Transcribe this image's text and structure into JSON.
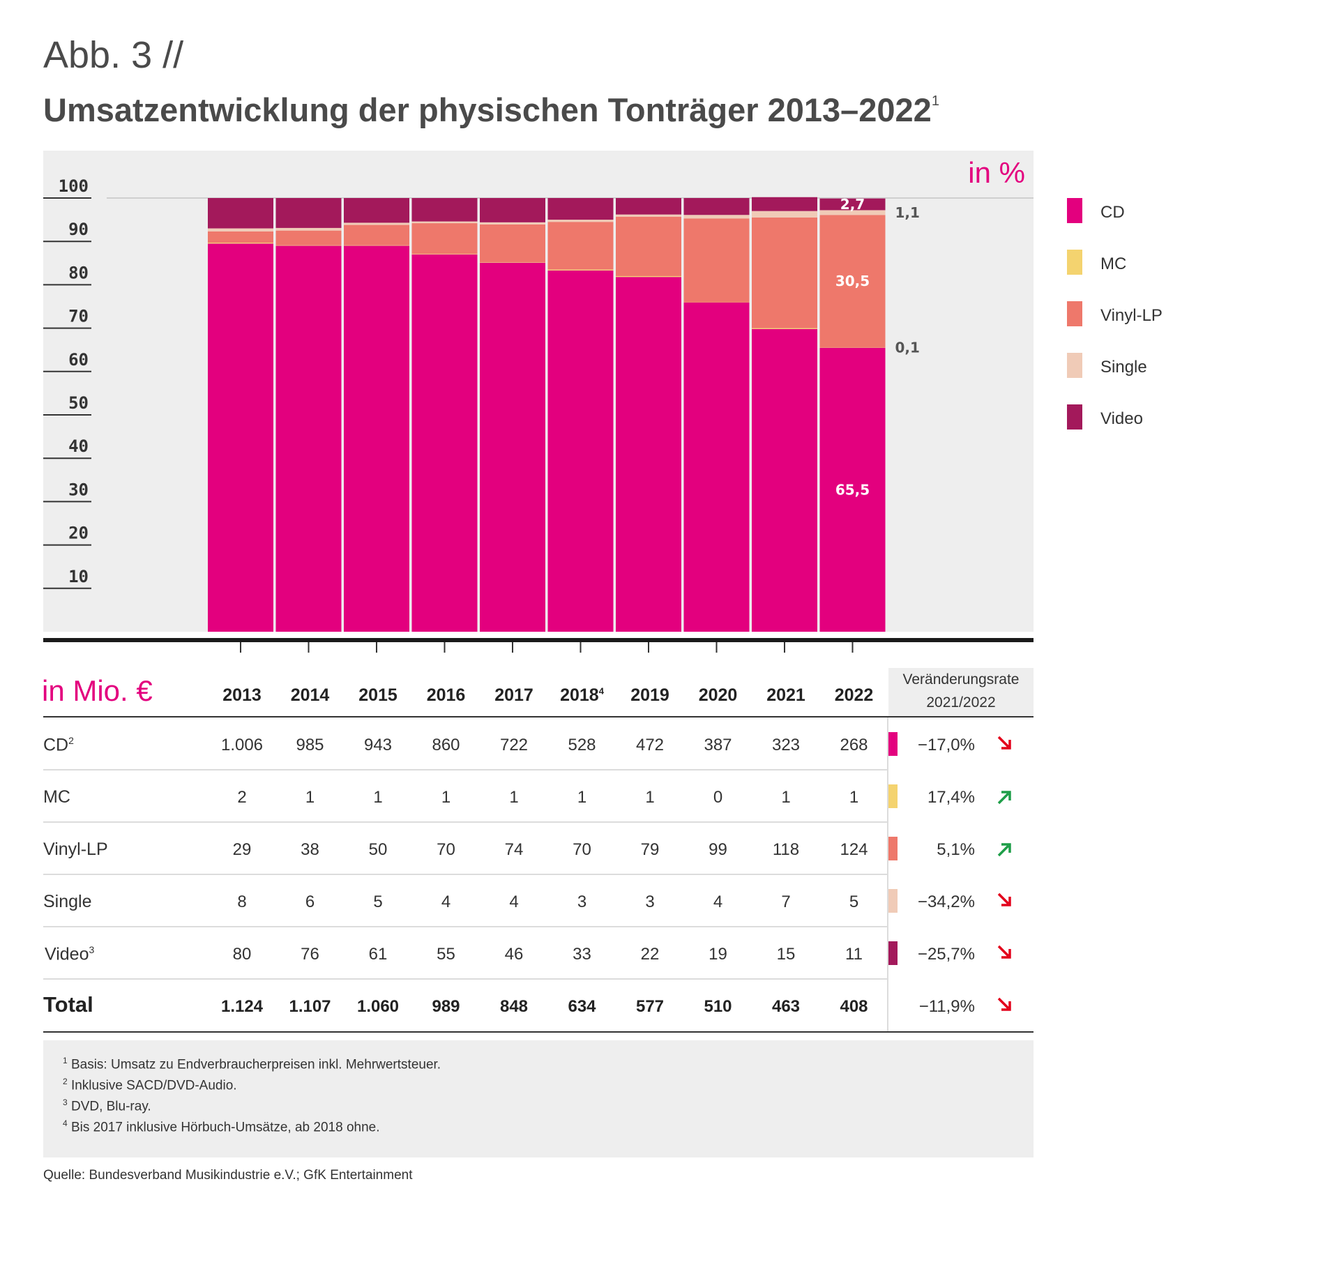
{
  "figure": {
    "label": "Abb. 3 //",
    "title": "Umsatzentwicklung der physischen Tonträger 2013–2022",
    "title_footnote": "1"
  },
  "chart_data": {
    "type": "bar",
    "stacked": true,
    "unit_label": "in %",
    "ylim": [
      0,
      100
    ],
    "yticks": [
      100,
      90,
      80,
      70,
      60,
      50,
      40,
      30,
      20,
      10
    ],
    "grid": false,
    "legend_position": "right",
    "categories": [
      "2013",
      "2014",
      "2015",
      "2016",
      "2017",
      "2018",
      "2019",
      "2020",
      "2021",
      "2022"
    ],
    "series": [
      {
        "name": "CD",
        "color": "#e3007e",
        "values": [
          89.5,
          89.0,
          89.0,
          87.0,
          85.1,
          83.3,
          81.8,
          75.9,
          69.8,
          65.5
        ]
      },
      {
        "name": "MC",
        "color": "#f4d36f",
        "values": [
          0.2,
          0.1,
          0.1,
          0.1,
          0.1,
          0.2,
          0.2,
          0.0,
          0.2,
          0.1
        ]
      },
      {
        "name": "Vinyl-LP",
        "color": "#ee786b",
        "values": [
          2.6,
          3.4,
          4.7,
          7.1,
          8.7,
          11.0,
          13.7,
          19.4,
          25.5,
          30.5
        ]
      },
      {
        "name": "Single",
        "color": "#f0cbb7",
        "values": [
          0.7,
          0.6,
          0.5,
          0.4,
          0.5,
          0.5,
          0.5,
          0.8,
          1.5,
          1.1
        ]
      },
      {
        "name": "Video",
        "color": "#a3195b",
        "values": [
          7.0,
          6.9,
          5.7,
          5.4,
          5.6,
          5.0,
          3.8,
          3.9,
          3.2,
          2.7
        ]
      }
    ],
    "annotations": [
      {
        "text": "2,7",
        "series": "Video",
        "category": "2022",
        "placement": "inside"
      },
      {
        "text": "30,5",
        "series": "Vinyl-LP",
        "category": "2022",
        "placement": "inside"
      },
      {
        "text": "65,5",
        "series": "CD",
        "category": "2022",
        "placement": "inside"
      },
      {
        "text": "1,1",
        "series": "Single",
        "category": "2022",
        "placement": "outside-right"
      },
      {
        "text": "0,1",
        "series": "MC",
        "category": "2022",
        "placement": "outside-right"
      }
    ]
  },
  "table": {
    "unit_label": "in Mio. €",
    "years": [
      {
        "label": "2013",
        "sup": ""
      },
      {
        "label": "2014",
        "sup": ""
      },
      {
        "label": "2015",
        "sup": ""
      },
      {
        "label": "2016",
        "sup": ""
      },
      {
        "label": "2017",
        "sup": ""
      },
      {
        "label": "2018",
        "sup": "4"
      },
      {
        "label": "2019",
        "sup": ""
      },
      {
        "label": "2020",
        "sup": ""
      },
      {
        "label": "2021",
        "sup": ""
      },
      {
        "label": "2022",
        "sup": ""
      }
    ],
    "rate_header_line1": "Veränderungsrate",
    "rate_header_line2": "2021/2022",
    "rows": [
      {
        "label": "CD",
        "sup": "2",
        "color": "#e3007e",
        "values": [
          "1.006",
          "985",
          "943",
          "860",
          "722",
          "528",
          "472",
          "387",
          "323",
          "268"
        ],
        "rate": "−17,0%",
        "trend": "down"
      },
      {
        "label": "MC",
        "sup": "",
        "color": "#f4d36f",
        "values": [
          "2",
          "1",
          "1",
          "1",
          "1",
          "1",
          "1",
          "0",
          "1",
          "1"
        ],
        "rate": "17,4%",
        "trend": "up"
      },
      {
        "label": "Vinyl-LP",
        "sup": "",
        "color": "#ee786b",
        "values": [
          "29",
          "38",
          "50",
          "70",
          "74",
          "70",
          "79",
          "99",
          "118",
          "124"
        ],
        "rate": "5,1%",
        "trend": "up"
      },
      {
        "label": "Single",
        "sup": "",
        "color": "#f0cbb7",
        "values": [
          "8",
          "6",
          "5",
          "4",
          "4",
          "3",
          "3",
          "4",
          "7",
          "5"
        ],
        "rate": "−34,2%",
        "trend": "down"
      },
      {
        "label": "Video",
        "sup": "3",
        "color": "#a3195b",
        "values": [
          "80",
          "76",
          "61",
          "55",
          "46",
          "33",
          "22",
          "19",
          "15",
          "11"
        ],
        "rate": "−25,7%",
        "trend": "down"
      }
    ],
    "total": {
      "label": "Total",
      "values": [
        "1.124",
        "1.107",
        "1.060",
        "989",
        "848",
        "634",
        "577",
        "510",
        "463",
        "408"
      ],
      "rate": "−11,9%",
      "trend": "down"
    },
    "trend_colors": {
      "down": "#e3001b",
      "up": "#1e9e48"
    }
  },
  "footnotes": [
    {
      "num": "1",
      "text": "Basis: Umsatz zu Endverbraucherpreisen inkl. Mehrwertsteuer."
    },
    {
      "num": "2",
      "text": "Inklusive SACD/DVD-Audio."
    },
    {
      "num": "3",
      "text": "DVD, Blu-ray."
    },
    {
      "num": "4",
      "text": "Bis 2017 inklusive Hörbuch-Umsätze, ab 2018 ohne."
    }
  ],
  "source": "Quelle: Bundesverband Musikindustrie e.V.; GfK Entertainment"
}
